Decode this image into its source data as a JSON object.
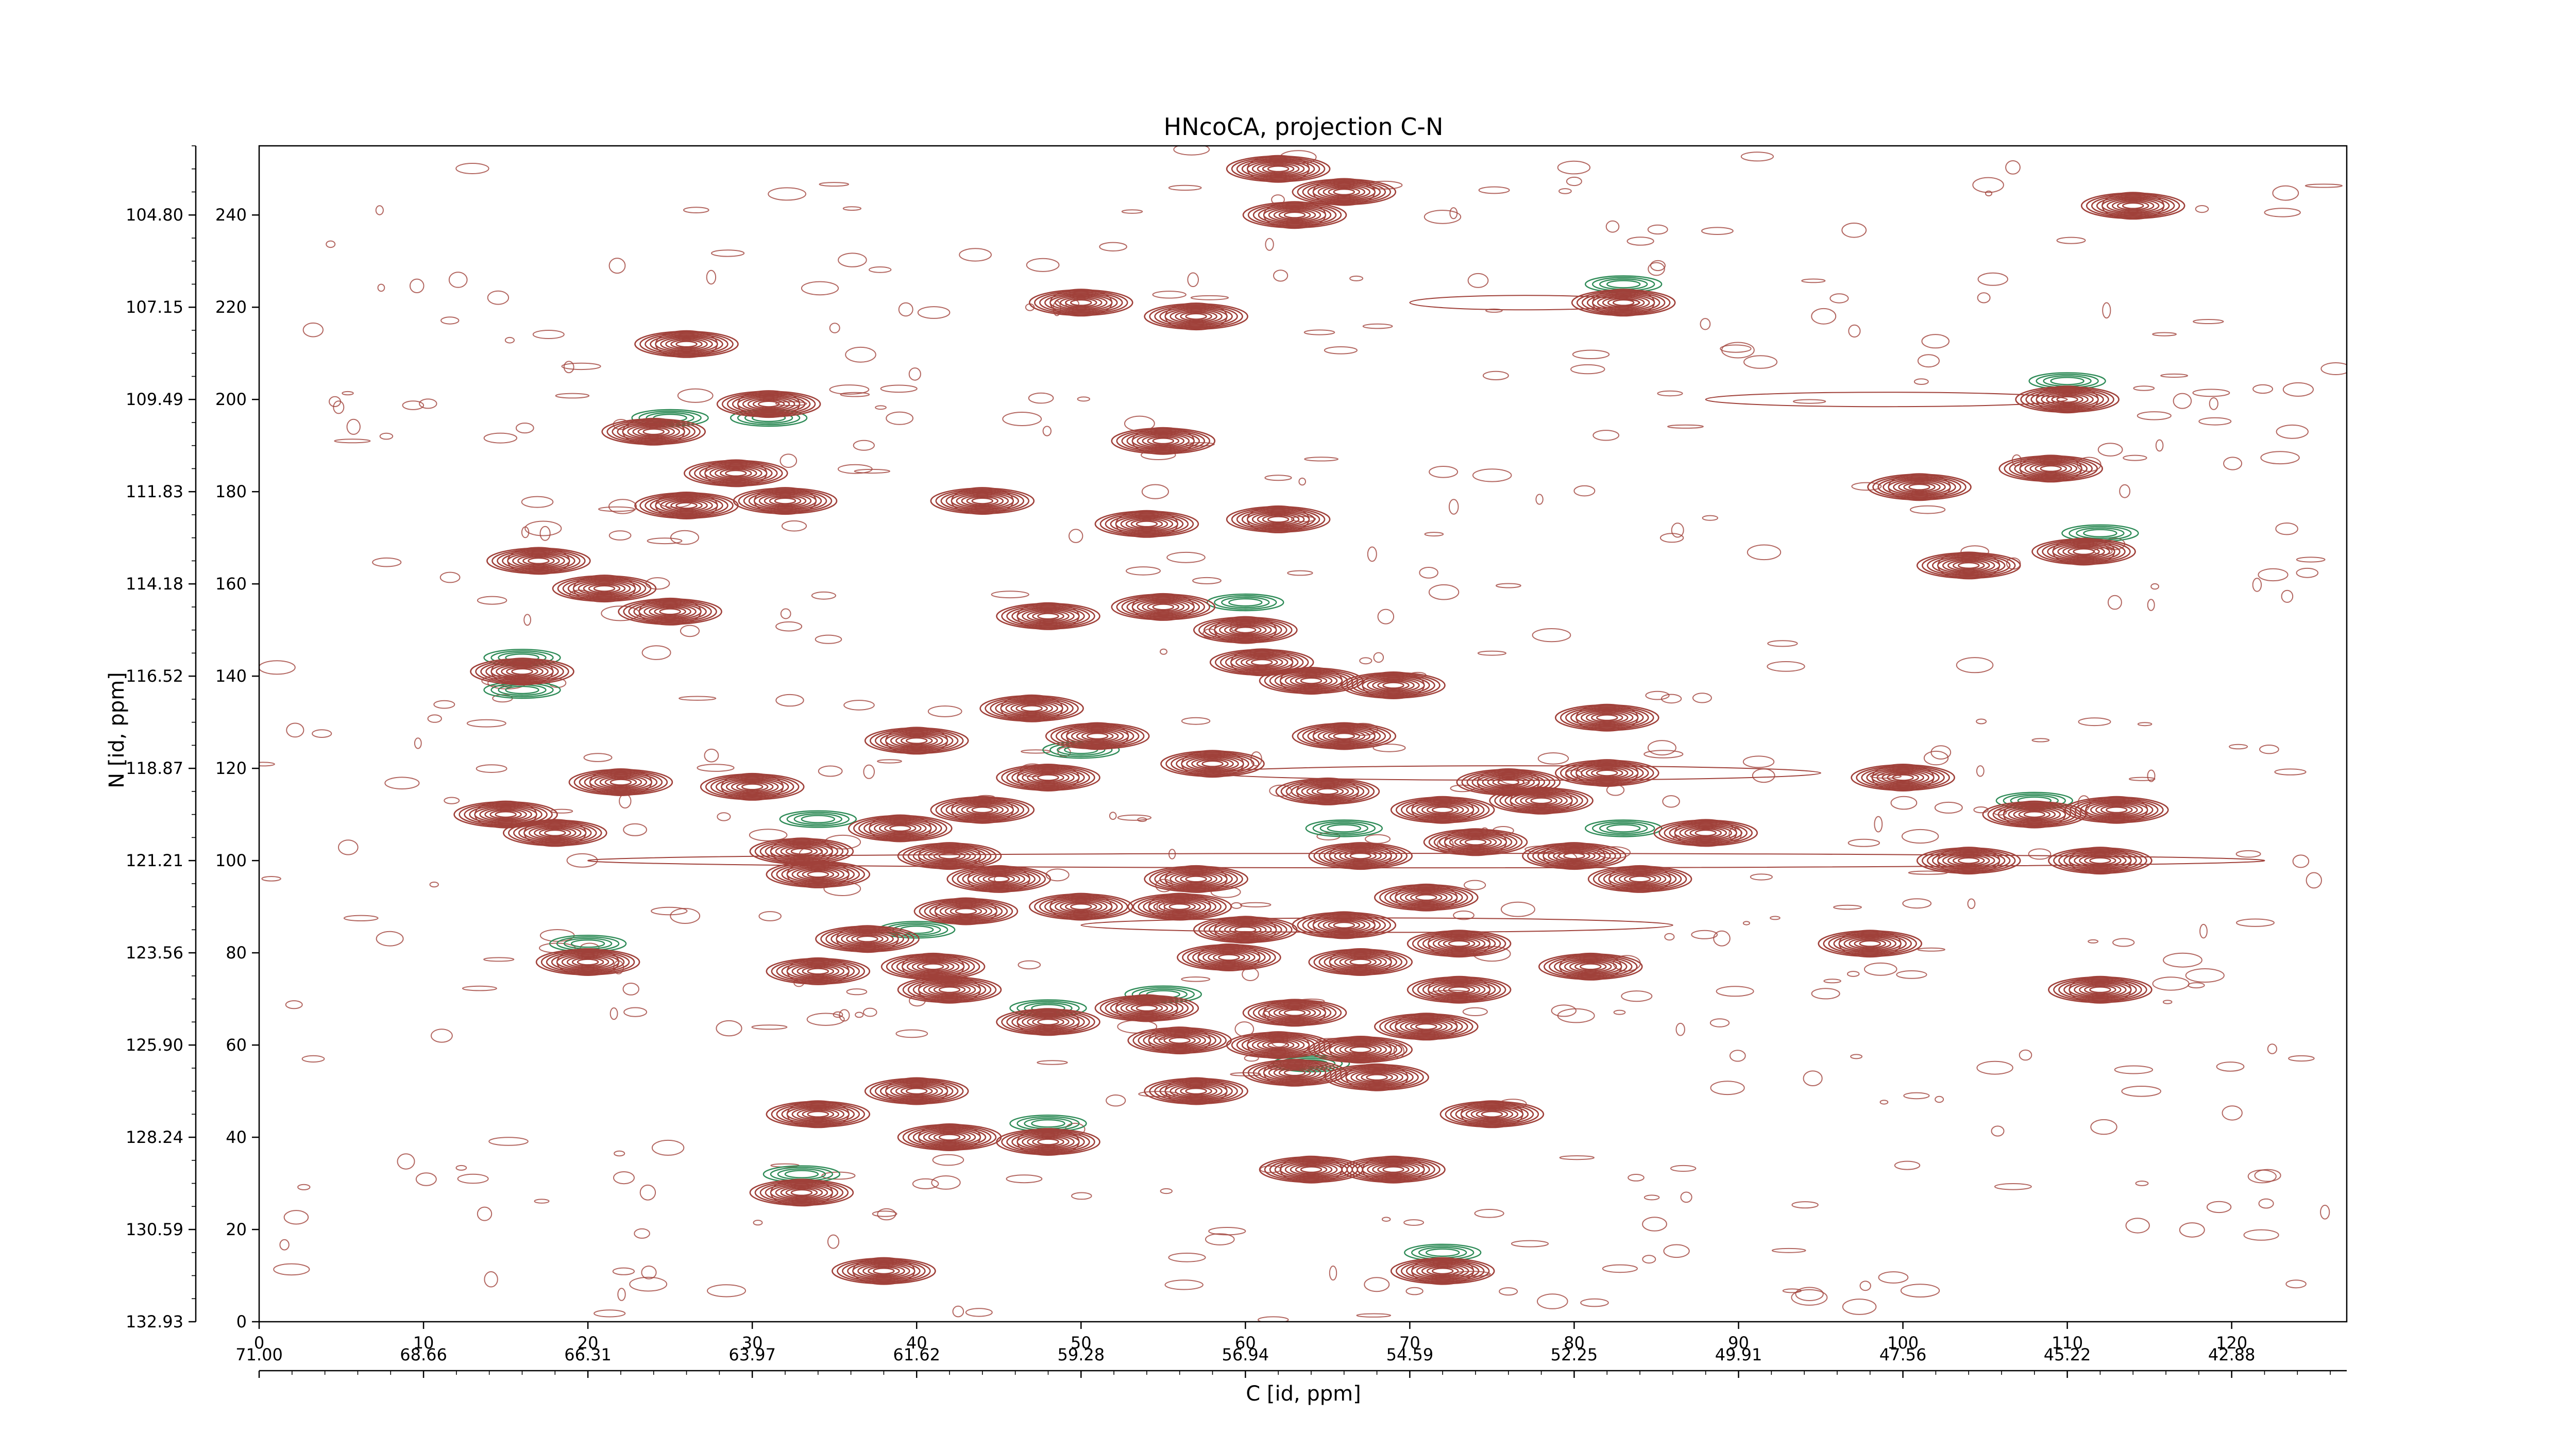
{
  "chart_data": {
    "type": "contour",
    "title": "HNcoCA, projection C-N",
    "xlabel": "C [id, ppm]",
    "ylabel": "N [id, ppm]",
    "x_index_ticks": [
      "0",
      "10",
      "20",
      "30",
      "40",
      "50",
      "60",
      "70",
      "80",
      "90",
      "100",
      "110",
      "120"
    ],
    "x_ppm_ticks": [
      "71.00",
      "68.66",
      "66.31",
      "63.97",
      "61.62",
      "59.28",
      "56.94",
      "54.59",
      "52.25",
      "49.91",
      "47.56",
      "45.22",
      "42.88"
    ],
    "y_index_ticks": [
      "0",
      "20",
      "40",
      "60",
      "80",
      "100",
      "120",
      "140",
      "160",
      "180",
      "200",
      "220",
      "240"
    ],
    "y_ppm_ticks": [
      "132.93",
      "130.59",
      "128.24",
      "125.90",
      "123.56",
      "121.21",
      "118.87",
      "116.52",
      "114.18",
      "111.83",
      "109.49",
      "107.15",
      "104.80"
    ],
    "xlim": [
      0,
      127
    ],
    "ylim": [
      0,
      255
    ],
    "colors": {
      "positive": "#a0413a",
      "negative": "#2e8b57"
    },
    "grid": false,
    "peaks": [
      {
        "x": 62,
        "y": 250
      },
      {
        "x": 66,
        "y": 245
      },
      {
        "x": 114,
        "y": 242
      },
      {
        "x": 63,
        "y": 240
      },
      {
        "x": 50,
        "y": 221
      },
      {
        "x": 57,
        "y": 218
      },
      {
        "x": 83,
        "y": 221
      },
      {
        "x": 26,
        "y": 212
      },
      {
        "x": 31,
        "y": 199
      },
      {
        "x": 110,
        "y": 200
      },
      {
        "x": 24,
        "y": 193
      },
      {
        "x": 55,
        "y": 191
      },
      {
        "x": 29,
        "y": 184
      },
      {
        "x": 109,
        "y": 185
      },
      {
        "x": 101,
        "y": 181
      },
      {
        "x": 26,
        "y": 177
      },
      {
        "x": 32,
        "y": 178
      },
      {
        "x": 44,
        "y": 178
      },
      {
        "x": 54,
        "y": 173
      },
      {
        "x": 62,
        "y": 174
      },
      {
        "x": 111,
        "y": 167
      },
      {
        "x": 104,
        "y": 164
      },
      {
        "x": 17,
        "y": 165
      },
      {
        "x": 21,
        "y": 159
      },
      {
        "x": 25,
        "y": 154
      },
      {
        "x": 55,
        "y": 155
      },
      {
        "x": 48,
        "y": 153
      },
      {
        "x": 60,
        "y": 150
      },
      {
        "x": 61,
        "y": 143
      },
      {
        "x": 16,
        "y": 141
      },
      {
        "x": 69,
        "y": 138
      },
      {
        "x": 64,
        "y": 139
      },
      {
        "x": 47,
        "y": 133
      },
      {
        "x": 82,
        "y": 131
      },
      {
        "x": 40,
        "y": 126
      },
      {
        "x": 51,
        "y": 127
      },
      {
        "x": 66,
        "y": 127
      },
      {
        "x": 58,
        "y": 121
      },
      {
        "x": 48,
        "y": 118
      },
      {
        "x": 82,
        "y": 119
      },
      {
        "x": 22,
        "y": 117
      },
      {
        "x": 30,
        "y": 116
      },
      {
        "x": 100,
        "y": 118
      },
      {
        "x": 76,
        "y": 117
      },
      {
        "x": 65,
        "y": 115
      },
      {
        "x": 72,
        "y": 111
      },
      {
        "x": 15,
        "y": 110
      },
      {
        "x": 78,
        "y": 113
      },
      {
        "x": 44,
        "y": 111
      },
      {
        "x": 108,
        "y": 110
      },
      {
        "x": 113,
        "y": 111
      },
      {
        "x": 18,
        "y": 106
      },
      {
        "x": 39,
        "y": 107
      },
      {
        "x": 88,
        "y": 106
      },
      {
        "x": 33,
        "y": 102
      },
      {
        "x": 42,
        "y": 101
      },
      {
        "x": 67,
        "y": 101
      },
      {
        "x": 80,
        "y": 101
      },
      {
        "x": 74,
        "y": 104
      },
      {
        "x": 104,
        "y": 100
      },
      {
        "x": 112,
        "y": 100
      },
      {
        "x": 34,
        "y": 97
      },
      {
        "x": 45,
        "y": 96
      },
      {
        "x": 57,
        "y": 96
      },
      {
        "x": 84,
        "y": 96
      },
      {
        "x": 71,
        "y": 92
      },
      {
        "x": 50,
        "y": 90
      },
      {
        "x": 56,
        "y": 90
      },
      {
        "x": 43,
        "y": 89
      },
      {
        "x": 60,
        "y": 85
      },
      {
        "x": 66,
        "y": 86
      },
      {
        "x": 37,
        "y": 83
      },
      {
        "x": 98,
        "y": 82
      },
      {
        "x": 73,
        "y": 82
      },
      {
        "x": 20,
        "y": 78
      },
      {
        "x": 59,
        "y": 79
      },
      {
        "x": 67,
        "y": 78
      },
      {
        "x": 34,
        "y": 76
      },
      {
        "x": 41,
        "y": 77
      },
      {
        "x": 81,
        "y": 77
      },
      {
        "x": 42,
        "y": 72
      },
      {
        "x": 73,
        "y": 72
      },
      {
        "x": 54,
        "y": 68
      },
      {
        "x": 112,
        "y": 72
      },
      {
        "x": 63,
        "y": 67
      },
      {
        "x": 48,
        "y": 65
      },
      {
        "x": 71,
        "y": 64
      },
      {
        "x": 56,
        "y": 61
      },
      {
        "x": 62,
        "y": 60
      },
      {
        "x": 67,
        "y": 59
      },
      {
        "x": 63,
        "y": 54
      },
      {
        "x": 68,
        "y": 53
      },
      {
        "x": 40,
        "y": 50
      },
      {
        "x": 57,
        "y": 50
      },
      {
        "x": 34,
        "y": 45
      },
      {
        "x": 75,
        "y": 45
      },
      {
        "x": 42,
        "y": 40
      },
      {
        "x": 48,
        "y": 39
      },
      {
        "x": 64,
        "y": 33
      },
      {
        "x": 69,
        "y": 33
      },
      {
        "x": 33,
        "y": 28
      },
      {
        "x": 38,
        "y": 11
      },
      {
        "x": 72,
        "y": 11
      }
    ],
    "negative_peaks": [
      {
        "x": 25,
        "y": 196
      },
      {
        "x": 31,
        "y": 196
      },
      {
        "x": 110,
        "y": 204
      },
      {
        "x": 83,
        "y": 225
      },
      {
        "x": 112,
        "y": 171
      },
      {
        "x": 60,
        "y": 156
      },
      {
        "x": 16,
        "y": 144
      },
      {
        "x": 16,
        "y": 137
      },
      {
        "x": 66,
        "y": 107
      },
      {
        "x": 83,
        "y": 107
      },
      {
        "x": 34,
        "y": 109
      },
      {
        "x": 40,
        "y": 85
      },
      {
        "x": 20,
        "y": 82
      },
      {
        "x": 48,
        "y": 68
      },
      {
        "x": 55,
        "y": 71
      },
      {
        "x": 48,
        "y": 43
      },
      {
        "x": 33,
        "y": 32
      },
      {
        "x": 72,
        "y": 15
      },
      {
        "x": 64,
        "y": 56
      },
      {
        "x": 108,
        "y": 113
      },
      {
        "x": 50,
        "y": 124
      }
    ]
  }
}
